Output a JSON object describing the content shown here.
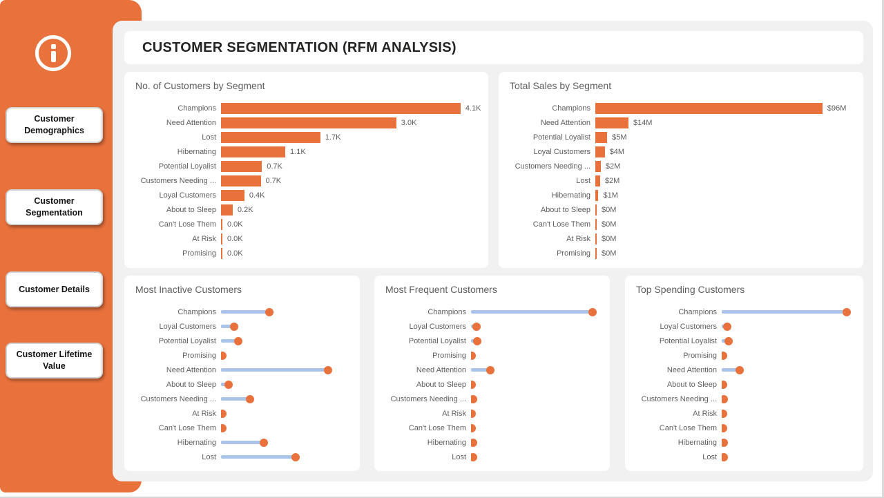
{
  "colors": {
    "accent_orange": "#E8713C",
    "lollipop_line_blue": "#A9C4E8",
    "panel_gray": "#F1F1F1",
    "card_white": "#FFFFFF",
    "header_text": "#252423",
    "label_gray": "#5F5E5C"
  },
  "sidebar": {
    "info_icon": "info-icon",
    "items": [
      {
        "label": "Customer Demographics"
      },
      {
        "label": "Customer Segmentation"
      },
      {
        "label": "Customer Details"
      },
      {
        "label": "Customer Lifetime Value"
      }
    ]
  },
  "header": {
    "title": "CUSTOMER SEGMENTATION (RFM ANALYSIS)"
  },
  "chart_data": [
    {
      "type": "bar",
      "title": "No. of Customers by Segment",
      "categories": [
        "Champions",
        "Need Attention",
        "Lost",
        "Hibernating",
        "Potential Loyalist",
        "Customers Needing ...",
        "Loyal Customers",
        "About to Sleep",
        "Can't Lose Them",
        "At Risk",
        "Promising"
      ],
      "values": [
        4100,
        3000,
        1700,
        1100,
        700,
        680,
        400,
        200,
        20,
        15,
        10
      ],
      "value_labels": [
        "4.1K",
        "3.0K",
        "1.7K",
        "1.1K",
        "0.7K",
        "0.7K",
        "0.4K",
        "0.2K",
        "0.0K",
        "0.0K",
        "0.0K"
      ],
      "xlim": [
        0,
        4500
      ],
      "orientation": "horizontal",
      "grid": false,
      "fill_pct": 92
    },
    {
      "type": "bar",
      "title": "Total Sales by Segment",
      "categories": [
        "Champions",
        "Need Attention",
        "Potential Loyalist",
        "Loyal Customers",
        "Customers Needing ...",
        "Lost",
        "Hibernating",
        "About to Sleep",
        "Can't Lose Them",
        "At Risk",
        "Promising"
      ],
      "values": [
        96,
        14,
        5,
        4,
        2.3,
        2,
        1.3,
        0.2,
        0.15,
        0.12,
        0.1
      ],
      "value_labels": [
        "$96M",
        "$14M",
        "$5M",
        "$4M",
        "$2M",
        "$2M",
        "$1M",
        "$0M",
        "$0M",
        "$0M",
        "$0M"
      ],
      "xlim": [
        0,
        110
      ],
      "orientation": "horizontal",
      "grid": false,
      "fill_pct": 87
    },
    {
      "type": "lollipop",
      "title": "Most Inactive Customers",
      "categories": [
        "Champions",
        "Loyal Customers",
        "Potential Loyalist",
        "Promising",
        "Need Attention",
        "About to Sleep",
        "Customers Needing ...",
        "At Risk",
        "Can't Lose Them",
        "Hibernating",
        "Lost"
      ],
      "values": [
        45,
        12,
        16,
        1,
        100,
        7,
        27,
        1,
        1,
        40,
        70
      ],
      "values_note": "no data labels shown; values estimated relative to longest stem = 100",
      "orientation": "horizontal",
      "grid": false,
      "fill_pct": 81
    },
    {
      "type": "lollipop",
      "title": "Most Frequent Customers",
      "categories": [
        "Champions",
        "Loyal Customers",
        "Potential Loyalist",
        "Promising",
        "Need Attention",
        "About to Sleep",
        "Customers Needing ...",
        "At Risk",
        "Can't Lose Them",
        "Hibernating",
        "Lost"
      ],
      "values": [
        100,
        4.4,
        5.2,
        0.5,
        16,
        0.5,
        1.9,
        0.5,
        0.5,
        1.5,
        1.9
      ],
      "values_note": "no data labels shown; values estimated relative to longest stem = 100",
      "orientation": "horizontal",
      "grid": false,
      "fill_pct": 92
    },
    {
      "type": "lollipop",
      "title": "Top Spending Customers",
      "categories": [
        "Champions",
        "Loyal Customers",
        "Potential Loyalist",
        "Promising",
        "Need Attention",
        "About to Sleep",
        "Customers Needing ...",
        "At Risk",
        "Can't Lose Them",
        "Hibernating",
        "Lost"
      ],
      "values": [
        100,
        4.6,
        5.5,
        0.9,
        14.4,
        1,
        1.8,
        0.9,
        1,
        1.4,
        1.7
      ],
      "values_note": "no data labels shown; values estimated relative to longest stem = 100",
      "orientation": "horizontal",
      "grid": false,
      "fill_pct": 93
    }
  ]
}
